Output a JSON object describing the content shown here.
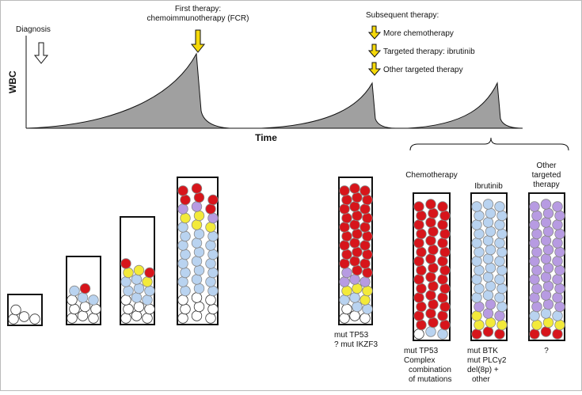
{
  "timeline": {
    "diagnosis": "Diagnosis",
    "first_therapy": [
      "First therapy:",
      "chemoimmunotherapy (FCR)"
    ],
    "subsequent_therapy": "Subsequent therapy:",
    "options": [
      "More chemotherapy",
      "Targeted therapy: ibrutinib",
      "Other targeted therapy"
    ],
    "y_axis": "WBC",
    "x_axis": "Time"
  },
  "outcomes": {
    "headers": [
      [
        "Chemotherapy"
      ],
      [
        "Ibrutinib"
      ],
      [
        "Other",
        "targeted",
        "therapy"
      ]
    ],
    "relapse_mutations": [
      "mut TP53",
      "? mut IKZF3"
    ],
    "notes": [
      [
        "mut TP53",
        "Complex",
        "combination",
        "of mutations"
      ],
      [
        "mut BTK",
        "mut PLCγ2",
        "del(8p) +",
        "other"
      ],
      [
        "?"
      ]
    ]
  }
}
